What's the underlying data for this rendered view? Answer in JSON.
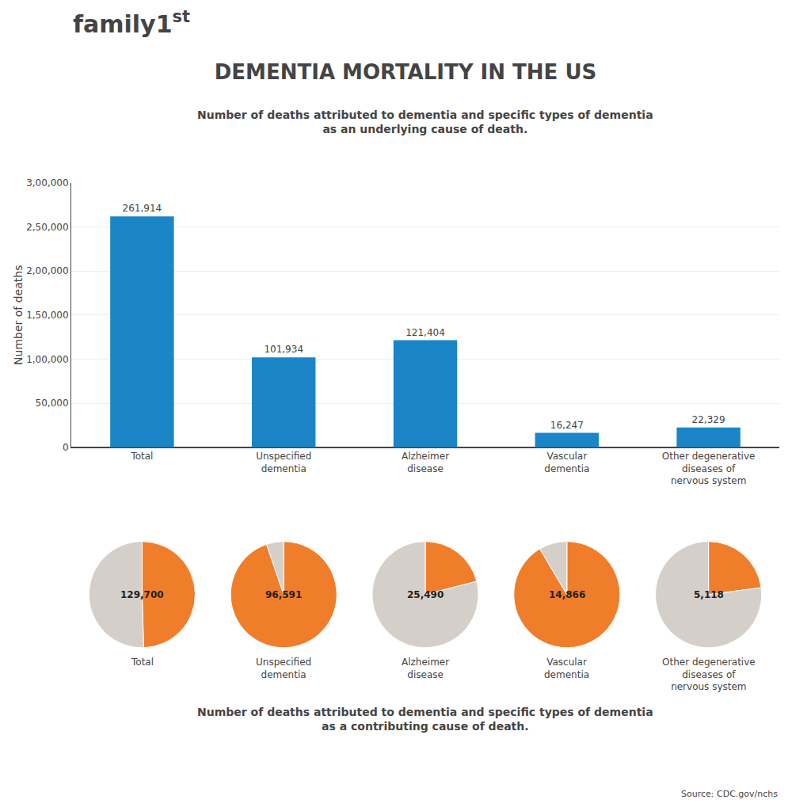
{
  "chart_data": [
    {
      "type": "bar",
      "title": "DEMENTIA MORTALITY IN THE US",
      "subtitle": "Number of deaths attributed to dementia and specific types of dementia\nas an underlying cause of death.",
      "annotations": [
        "family1",
        "st",
        "Source: CDC.gov/nchs"
      ],
      "categories": [
        "Total",
        "Unspecified\ndementia",
        "Alzheimer\ndisease",
        "Vascular\ndementia",
        "Other degenerative\ndiseases of\nnervous system"
      ],
      "values": [
        261914,
        101934,
        121404,
        16247,
        22329
      ],
      "value_labels": [
        "261,914",
        "101,934",
        "121,404",
        "16,247",
        "22,329"
      ],
      "data_labels": true,
      "color": "#1a86c7",
      "ylabel": "Number of deaths",
      "ylim": [
        0,
        300000
      ],
      "yticks": [
        0,
        {
          "value": 50000,
          "label": "50,000"
        },
        {
          "value": 100000,
          "label": "1,00,000"
        },
        {
          "value": 150000,
          "label": "1,50,000"
        },
        {
          "value": 200000,
          "label": "2,00,000"
        },
        {
          "value": 250000,
          "label": "2,50,000"
        },
        {
          "value": 300000,
          "label": "3,00,000"
        }
      ],
      "grid": true
    },
    {
      "type": "pie",
      "title": "Total",
      "subtitle": "Number of deaths attributed to dementia and specific types of dementia\nas a contributing cause of death.",
      "values": [
        129700,
        132214
      ],
      "colors": [
        "#f07d2a",
        "#d5cfc9"
      ],
      "annotations": [
        "129,700"
      ]
    },
    {
      "type": "pie",
      "title": "Unspecified\ndementia",
      "values": [
        96591,
        5343
      ],
      "colors": [
        "#f07d2a",
        "#d5cfc9"
      ],
      "annotations": [
        "96,591"
      ]
    },
    {
      "type": "pie",
      "title": "Alzheimer\ndisease",
      "values": [
        25490,
        95914
      ],
      "colors": [
        "#f07d2a",
        "#d5cfc9"
      ],
      "annotations": [
        "25,490"
      ]
    },
    {
      "type": "pie",
      "title": "Vascular\ndementia",
      "values": [
        14866,
        1381
      ],
      "colors": [
        "#f07d2a",
        "#d5cfc9"
      ],
      "annotations": [
        "14,866"
      ]
    },
    {
      "type": "pie",
      "title": "Other degenerative\ndiseases of\nnervous system",
      "values": [
        5118,
        17211
      ],
      "colors": [
        "#f07d2a",
        "#d5cfc9"
      ],
      "annotations": [
        "5,118"
      ]
    }
  ]
}
